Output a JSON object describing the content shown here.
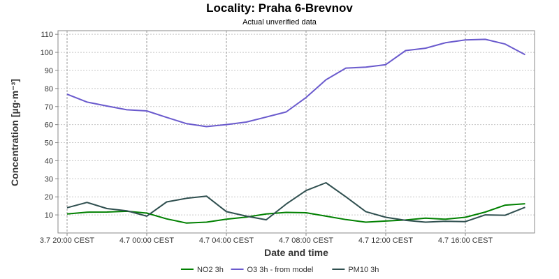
{
  "chart_data": {
    "type": "line",
    "title": "Locality: Praha 6-Brevnov",
    "subtitle": "Actual unverified data",
    "xlabel": "Date and time",
    "ylabel": "Concentration [µg·m⁻³]",
    "x_tick_labels": [
      "3.7 20:00 CEST",
      "4.7 00:00 CEST",
      "4.7 04:00 CEST",
      "4.7 08:00 CEST",
      "4.7 12:00 CEST",
      "4.7 16:00 CEST"
    ],
    "x_tick_indices": [
      0,
      4,
      8,
      12,
      16,
      20
    ],
    "x": [
      "3.7 20:00",
      "3.7 21:00",
      "3.7 22:00",
      "3.7 23:00",
      "4.7 00:00",
      "4.7 01:00",
      "4.7 02:00",
      "4.7 03:00",
      "4.7 04:00",
      "4.7 05:00",
      "4.7 06:00",
      "4.7 07:00",
      "4.7 08:00",
      "4.7 09:00",
      "4.7 10:00",
      "4.7 11:00",
      "4.7 12:00",
      "4.7 13:00",
      "4.7 14:00",
      "4.7 15:00",
      "4.7 16:00",
      "4.7 17:00",
      "4.7 18:00",
      "4.7 19:00"
    ],
    "yticks": [
      10,
      20,
      30,
      40,
      50,
      60,
      70,
      80,
      90,
      100,
      110
    ],
    "ylim": [
      0,
      112
    ],
    "grid": true,
    "legend_position": "bottom-center",
    "series": [
      {
        "name": "NO2 3h",
        "color": "#008000",
        "values": [
          10.5,
          11.5,
          11.6,
          12.0,
          11.0,
          7.8,
          5.5,
          6.0,
          7.6,
          8.8,
          10.5,
          11.4,
          11.2,
          9.3,
          7.4,
          6.0,
          6.6,
          7.2,
          8.2,
          7.6,
          8.7,
          11.6,
          15.4,
          16.2
        ]
      },
      {
        "name": "O3 3h - from model",
        "color": "#6a5acd",
        "values": [
          76.8,
          72.5,
          70.3,
          68.2,
          67.6,
          64.0,
          60.5,
          58.9,
          60.0,
          61.4,
          64.2,
          67.0,
          75.0,
          84.8,
          91.3,
          91.8,
          93.2,
          101.0,
          102.3,
          105.3,
          106.9,
          107.2,
          104.6,
          98.7
        ]
      },
      {
        "name": "PM10 3h",
        "color": "#2f4f4f",
        "values": [
          14.0,
          16.9,
          13.5,
          12.3,
          9.3,
          17.2,
          19.2,
          20.4,
          11.8,
          9.3,
          7.3,
          16.0,
          23.5,
          27.8,
          20.0,
          11.8,
          8.7,
          7.0,
          6.0,
          6.5,
          6.3,
          10.0,
          9.8,
          14.2
        ]
      }
    ]
  }
}
